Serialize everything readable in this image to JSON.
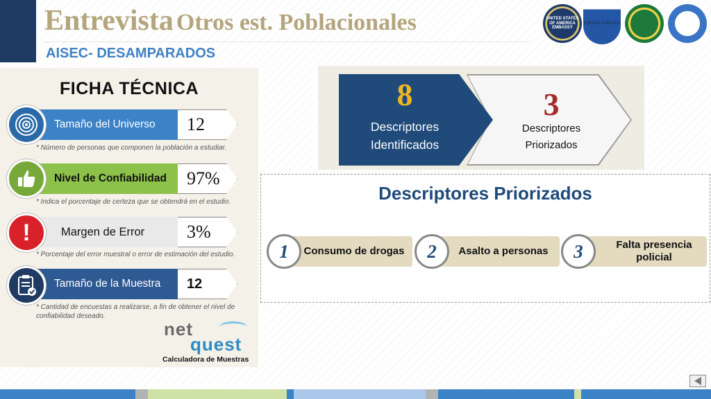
{
  "header": {
    "title_part1": "Entrevista",
    "title_part2": "Otros est. Poblacionales",
    "subtitle": "AISEC- DESAMPARADOS",
    "logos": [
      {
        "name": "us-embassy-seal",
        "text": "UNITED STATES OF AMERICA EMBASSY"
      },
      {
        "name": "fuerza-publica-logo",
        "text": "FUERZA PÚBLICA"
      },
      {
        "name": "police-green-seal",
        "text": ""
      },
      {
        "name": "blue-round-seal",
        "text": ""
      }
    ]
  },
  "ficha": {
    "title": "FICHA TÉCNICA",
    "rows": [
      {
        "icon": "target-icon",
        "label": "Tamaño del Universo",
        "value": "12",
        "note": "* Número de personas que componen la población a estudiar."
      },
      {
        "icon": "thumbs-up-icon",
        "label": "Nivel de Confiabilidad",
        "value": "97%",
        "note": "* Indica el porcentaje de certeza que se obtendrá en el estudio."
      },
      {
        "icon": "exclamation-icon",
        "label": "Margen de Error",
        "value": "3%",
        "note": "* Porcentaje del error muestral o error de estimación del estudio."
      },
      {
        "icon": "clipboard-check-icon",
        "label": "Tamaño de la Muestra",
        "value": "12",
        "note": "* Cantidad de encuestas a realizarse, a fin de obtener el nivel de confiabilidad deseado."
      }
    ]
  },
  "netquest": {
    "logo_net": "net",
    "logo_quest": "quest",
    "caption": "Calculadora de Muestras"
  },
  "summary": {
    "identified": {
      "number": "8",
      "line1": "Descriptores",
      "line2": "Identificados"
    },
    "prioritized": {
      "number": "3",
      "line1": "Descriptores",
      "line2": "Priorizados"
    }
  },
  "priorizados": {
    "title": "Descriptores Priorizados",
    "items": [
      {
        "num": "1",
        "label": "Consumo de drogas"
      },
      {
        "num": "2",
        "label": "Asalto a personas"
      },
      {
        "num": "3",
        "label_line1": "Falta presencia",
        "label_line2": "policial"
      }
    ]
  },
  "colors": {
    "title_gold": "#b4a57d",
    "navy": "#1f3b63",
    "accent_blue": "#3b82c6",
    "accent_green": "#8cc14a",
    "alert_red": "#d82128",
    "number_gold": "#f0b526",
    "number_red": "#a52a2a"
  },
  "footer": {
    "stripe_colors": [
      "#3b82c6",
      "#b3b3b3",
      "#cfe2a6",
      "#3b82c6",
      "#a9c8ea",
      "#b3b3b3",
      "#3b82c6",
      "#cfe2a6",
      "#3b82c6"
    ]
  }
}
